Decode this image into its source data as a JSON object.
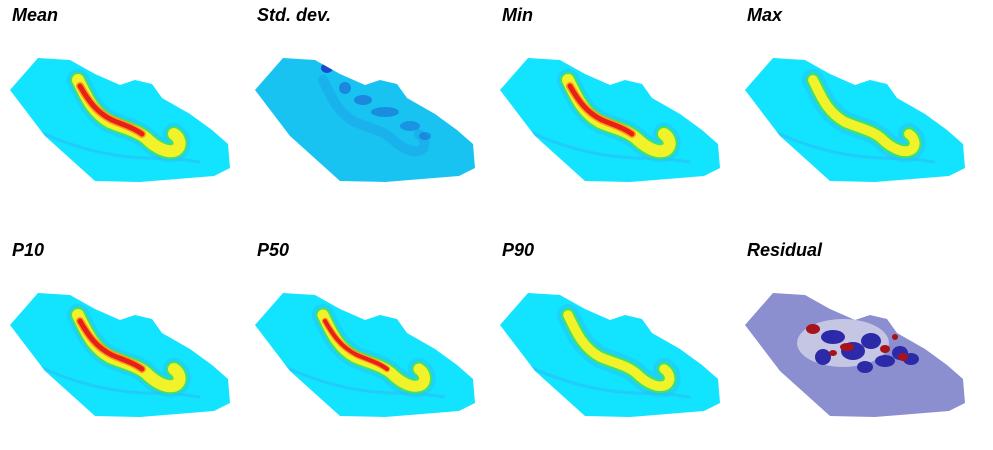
{
  "panels": [
    {
      "id": "mean",
      "title": "Mean",
      "variant": "channel",
      "channel_strength": 1.0
    },
    {
      "id": "std",
      "title": "Std. dev.",
      "variant": "std",
      "channel_strength": 0.0
    },
    {
      "id": "min",
      "title": "Min",
      "variant": "channel",
      "channel_strength": 1.0
    },
    {
      "id": "max",
      "title": "Max",
      "variant": "channel",
      "channel_strength": 0.55
    },
    {
      "id": "p10",
      "title": "P10",
      "variant": "channel",
      "channel_strength": 1.0
    },
    {
      "id": "p50",
      "title": "P50",
      "variant": "channel",
      "channel_strength": 0.8
    },
    {
      "id": "p90",
      "title": "P90",
      "variant": "channel",
      "channel_strength": 0.5
    },
    {
      "id": "residual",
      "title": "Residual",
      "variant": "residual",
      "channel_strength": 0.0
    }
  ],
  "colors": {
    "background_field": "#12e3ff",
    "outer_halo": "#2bbcf5",
    "channel_green": "#3de36a",
    "channel_yellow": "#f2f22a",
    "channel_orange": "#ff9a1a",
    "channel_red": "#e8201a",
    "std_field": "#18c3f2",
    "std_dark": "#1f3dc4",
    "residual_field": "#8b8ecf",
    "residual_blue": "#2c2aa8",
    "residual_red": "#a8121a",
    "residual_white": "#f4f4f4"
  }
}
